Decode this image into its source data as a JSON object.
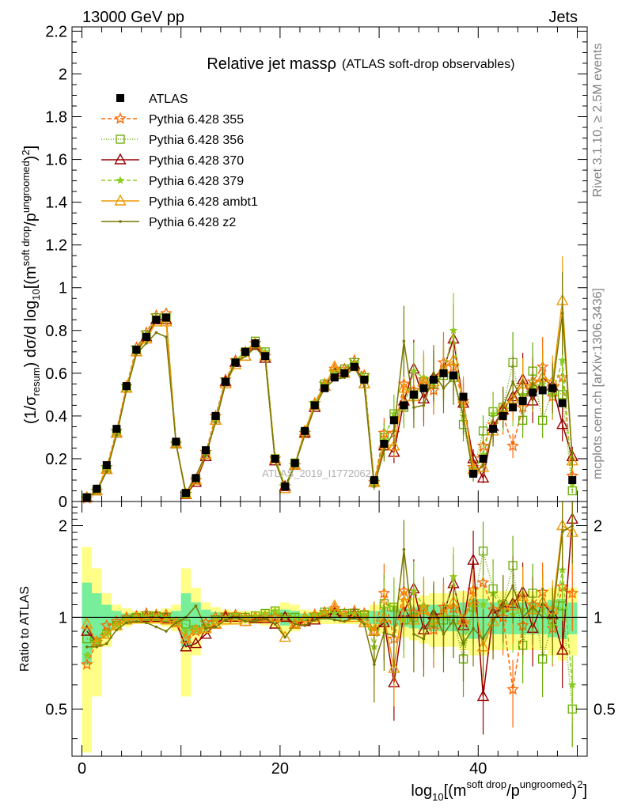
{
  "header": {
    "left": "13000 GeV pp",
    "right": "Jets"
  },
  "side_labels": {
    "rivet": "Rivet 3.1.10, ≥ 2.5M events",
    "mcplots": "mcplots.cern.ch [arXiv:1306.3436]"
  },
  "watermark": "ATLAS_2019_I1772062",
  "chart_data": [
    {
      "type": "line",
      "title": "Relative jet massρ",
      "subtitle": "(ATLAS soft-drop observables)",
      "ylabel": "(1/σresum) dσ/d log10[(m^soft drop/pT^ungroomed)^2]",
      "xlabel": "log10[(m^soft drop/pT^ungroomed)^2]",
      "xlim": [
        -1,
        51
      ],
      "ylim": [
        0,
        2.22
      ],
      "yticks": [
        0,
        0.2,
        0.4,
        0.6,
        0.8,
        1,
        1.2,
        1.4,
        1.6,
        1.8,
        2,
        2.2
      ],
      "ytick_labels": [
        "0",
        "0.2",
        "0.4",
        "0.6",
        "0.8",
        "1",
        "1.2",
        "1.4",
        "1.6",
        "1.8",
        "2",
        "2.2"
      ],
      "xticks": [
        0,
        20,
        40
      ],
      "xtick_labels": [
        "0",
        "20",
        "40"
      ],
      "legend_position": "top-left",
      "x": [
        0.5,
        1.5,
        2.5,
        3.5,
        4.5,
        5.5,
        6.5,
        7.5,
        8.5,
        9.5,
        10.5,
        11.5,
        12.5,
        13.5,
        14.5,
        15.5,
        16.5,
        17.5,
        18.5,
        19.5,
        20.5,
        21.5,
        22.5,
        23.5,
        24.5,
        25.5,
        26.5,
        27.5,
        28.5,
        29.5,
        30.5,
        31.5,
        32.5,
        33.5,
        34.5,
        35.5,
        36.5,
        37.5,
        38.5,
        39.5,
        40.5,
        41.5,
        42.5,
        43.5,
        44.5,
        45.5,
        46.5,
        47.5,
        48.5,
        49.5
      ],
      "series": [
        {
          "name": "ATLAS",
          "color": "#000000",
          "marker": "square",
          "dash": "none",
          "values": [
            0.02,
            0.06,
            0.17,
            0.34,
            0.54,
            0.71,
            0.77,
            0.85,
            0.86,
            0.28,
            0.04,
            0.11,
            0.24,
            0.4,
            0.56,
            0.65,
            0.7,
            0.74,
            0.68,
            0.2,
            0.07,
            0.18,
            0.33,
            0.45,
            0.53,
            0.58,
            0.6,
            0.63,
            0.57,
            0.1,
            0.27,
            0.38,
            0.45,
            0.5,
            0.53,
            0.57,
            0.6,
            0.59,
            0.49,
            0.13,
            0.2,
            0.34,
            0.4,
            0.44,
            0.47,
            0.51,
            0.52,
            0.53,
            0.46,
            0.1
          ]
        },
        {
          "name": "Pythia 6.428 355",
          "color": "#ff6600",
          "marker": "star",
          "dash": "5,3",
          "values": [
            0.014,
            0.05,
            0.16,
            0.33,
            0.54,
            0.72,
            0.79,
            0.87,
            0.88,
            0.27,
            0.035,
            0.1,
            0.23,
            0.4,
            0.57,
            0.66,
            0.7,
            0.74,
            0.68,
            0.2,
            0.07,
            0.17,
            0.32,
            0.46,
            0.55,
            0.62,
            0.62,
            0.66,
            0.59,
            0.09,
            0.32,
            0.32,
            0.55,
            0.52,
            0.57,
            0.52,
            0.65,
            0.63,
            0.47,
            0.16,
            0.26,
            0.36,
            0.4,
            0.26,
            0.44,
            0.56,
            0.63,
            0.49,
            0.58,
            0.12
          ]
        },
        {
          "name": "Pythia 6.428 356",
          "color": "#66aa00",
          "marker": "opensquare",
          "dash": "1,2",
          "values": [
            0.017,
            0.05,
            0.15,
            0.32,
            0.53,
            0.71,
            0.78,
            0.86,
            0.86,
            0.27,
            0.038,
            0.1,
            0.22,
            0.39,
            0.56,
            0.65,
            0.7,
            0.75,
            0.7,
            0.2,
            0.07,
            0.18,
            0.32,
            0.45,
            0.55,
            0.6,
            0.62,
            0.65,
            0.58,
            0.09,
            0.3,
            0.41,
            0.44,
            0.5,
            0.56,
            0.55,
            0.59,
            0.58,
            0.36,
            0.14,
            0.33,
            0.42,
            0.44,
            0.65,
            0.38,
            0.61,
            0.38,
            0.52,
            0.5,
            0.05
          ]
        },
        {
          "name": "Pythia 6.428 370",
          "color": "#990000",
          "marker": "triangle",
          "dash": "none",
          "values": [
            0.018,
            0.05,
            0.15,
            0.32,
            0.53,
            0.7,
            0.77,
            0.85,
            0.85,
            0.27,
            0.032,
            0.09,
            0.21,
            0.38,
            0.56,
            0.65,
            0.68,
            0.73,
            0.67,
            0.19,
            0.07,
            0.17,
            0.32,
            0.44,
            0.54,
            0.6,
            0.6,
            0.64,
            0.55,
            0.09,
            0.26,
            0.23,
            0.47,
            0.62,
            0.48,
            0.58,
            0.62,
            0.76,
            0.46,
            0.2,
            0.11,
            0.35,
            0.43,
            0.49,
            0.57,
            0.47,
            0.58,
            0.54,
            0.36,
            0.21
          ]
        },
        {
          "name": "Pythia 6.428 379",
          "color": "#88cc22",
          "marker": "smallstar",
          "dash": "5,3",
          "values": [
            0.015,
            0.05,
            0.15,
            0.32,
            0.53,
            0.71,
            0.78,
            0.86,
            0.86,
            0.27,
            0.036,
            0.1,
            0.22,
            0.39,
            0.56,
            0.66,
            0.7,
            0.75,
            0.7,
            0.21,
            0.07,
            0.18,
            0.33,
            0.46,
            0.55,
            0.6,
            0.61,
            0.65,
            0.58,
            0.08,
            0.29,
            0.41,
            0.44,
            0.61,
            0.58,
            0.55,
            0.6,
            0.8,
            0.4,
            0.14,
            0.22,
            0.41,
            0.42,
            0.45,
            0.5,
            0.54,
            0.55,
            0.5,
            0.66,
            0.08
          ]
        },
        {
          "name": "Pythia 6.428 ambt1",
          "color": "#ee9900",
          "marker": "triangle",
          "dash": "none",
          "values": [
            0.019,
            0.05,
            0.15,
            0.32,
            0.53,
            0.7,
            0.76,
            0.84,
            0.84,
            0.27,
            0.034,
            0.1,
            0.22,
            0.38,
            0.55,
            0.64,
            0.68,
            0.74,
            0.68,
            0.2,
            0.06,
            0.17,
            0.33,
            0.45,
            0.54,
            0.63,
            0.6,
            0.63,
            0.55,
            0.09,
            0.27,
            0.26,
            0.53,
            0.49,
            0.56,
            0.56,
            0.62,
            0.66,
            0.48,
            0.15,
            0.16,
            0.33,
            0.44,
            0.48,
            0.55,
            0.54,
            0.58,
            0.56,
            0.94,
            0.19
          ]
        },
        {
          "name": "Pythia 6.428 z2",
          "color": "#777700",
          "marker": "dot",
          "dash": "none",
          "values": [
            0.016,
            0.048,
            0.14,
            0.31,
            0.52,
            0.69,
            0.74,
            0.79,
            0.77,
            0.27,
            0.04,
            0.12,
            0.22,
            0.37,
            0.55,
            0.65,
            0.68,
            0.72,
            0.67,
            0.19,
            0.06,
            0.17,
            0.31,
            0.44,
            0.53,
            0.57,
            0.58,
            0.63,
            0.54,
            0.07,
            0.24,
            0.33,
            0.75,
            0.44,
            0.45,
            0.6,
            0.53,
            0.58,
            0.4,
            0.12,
            0.17,
            0.33,
            0.44,
            0.56,
            0.47,
            0.55,
            0.52,
            0.53,
            0.88,
            0.2
          ]
        }
      ]
    },
    {
      "type": "line",
      "ylabel": "Ratio to ATLAS",
      "xlabel": "log10[(m^soft drop/pT^ungroomed)^2]",
      "xlim": [
        -1,
        51
      ],
      "ylim": [
        0.35,
        2.4
      ],
      "yscale": "log",
      "yticks": [
        0.5,
        1,
        2
      ],
      "ytick_labels": [
        "0.5",
        "1",
        "2"
      ],
      "xticks": [
        0,
        20,
        40
      ],
      "xtick_labels": [
        "0",
        "20",
        "40"
      ],
      "reference_line": 1,
      "band_inner_halfwidth": [
        0.3,
        0.2,
        0.1,
        0.05,
        0.03,
        0.02,
        0.02,
        0.02,
        0.03,
        0.05,
        0.2,
        0.12,
        0.06,
        0.04,
        0.03,
        0.02,
        0.02,
        0.02,
        0.03,
        0.04,
        0.06,
        0.05,
        0.03,
        0.02,
        0.02,
        0.02,
        0.02,
        0.02,
        0.03,
        0.05,
        0.06,
        0.06,
        0.07,
        0.08,
        0.09,
        0.1,
        0.1,
        0.1,
        0.12,
        0.15,
        0.15,
        0.12,
        0.12,
        0.12,
        0.12,
        0.12,
        0.12,
        0.14,
        0.15,
        0.12
      ],
      "band_outer_halfwidth": [
        0.7,
        0.45,
        0.2,
        0.1,
        0.07,
        0.05,
        0.05,
        0.05,
        0.07,
        0.1,
        0.45,
        0.25,
        0.12,
        0.08,
        0.06,
        0.05,
        0.05,
        0.05,
        0.06,
        0.08,
        0.12,
        0.1,
        0.06,
        0.05,
        0.05,
        0.05,
        0.05,
        0.05,
        0.06,
        0.1,
        0.12,
        0.12,
        0.14,
        0.16,
        0.18,
        0.2,
        0.2,
        0.2,
        0.22,
        0.25,
        0.25,
        0.22,
        0.22,
        0.22,
        0.22,
        0.22,
        0.22,
        0.25,
        0.28,
        0.25
      ],
      "series": [
        {
          "name": "Pythia 6.428 355",
          "values": [
            0.7,
            0.83,
            0.94,
            0.97,
            1.0,
            1.01,
            1.03,
            1.02,
            1.02,
            0.96,
            0.85,
            0.9,
            0.96,
            1.0,
            1.02,
            1.02,
            1.0,
            1.0,
            1.0,
            1.0,
            1.0,
            0.95,
            0.97,
            1.02,
            1.04,
            1.07,
            1.03,
            1.05,
            1.03,
            0.9,
            1.2,
            0.85,
            1.22,
            1.04,
            1.08,
            0.91,
            1.08,
            1.07,
            0.96,
            1.23,
            1.3,
            1.06,
            1.0,
            0.58,
            0.94,
            1.1,
            1.21,
            0.92,
            1.26,
            1.2
          ]
        },
        {
          "name": "Pythia 6.428 356",
          "values": [
            0.85,
            0.83,
            0.88,
            0.94,
            0.98,
            1.0,
            1.01,
            1.01,
            1.0,
            0.96,
            0.95,
            0.91,
            0.92,
            0.98,
            1.0,
            1.0,
            1.0,
            1.01,
            1.03,
            1.05,
            1.0,
            1.0,
            0.97,
            1.0,
            1.04,
            1.03,
            1.03,
            1.03,
            1.02,
            0.9,
            1.11,
            1.08,
            0.98,
            1.0,
            1.06,
            0.96,
            0.98,
            0.98,
            0.73,
            1.08,
            1.65,
            1.24,
            1.1,
            1.48,
            0.81,
            1.2,
            0.73,
            0.98,
            1.09,
            0.5
          ]
        },
        {
          "name": "Pythia 6.428 370",
          "values": [
            0.9,
            0.83,
            0.88,
            0.94,
            0.98,
            0.99,
            1.0,
            1.0,
            0.99,
            0.96,
            0.8,
            0.82,
            0.88,
            0.95,
            1.0,
            1.0,
            0.97,
            0.99,
            0.99,
            0.95,
            1.0,
            0.95,
            0.97,
            0.98,
            1.02,
            1.03,
            1.0,
            1.02,
            0.96,
            0.9,
            0.96,
            0.61,
            1.04,
            1.24,
            0.91,
            1.02,
            1.03,
            1.29,
            0.94,
            1.54,
            0.55,
            1.03,
            1.08,
            1.11,
            1.21,
            0.92,
            1.12,
            1.02,
            0.78,
            2.1
          ]
        },
        {
          "name": "Pythia 6.428 379",
          "values": [
            0.75,
            0.83,
            0.88,
            0.94,
            0.98,
            1.0,
            1.01,
            1.01,
            1.0,
            0.96,
            0.9,
            0.91,
            0.92,
            0.98,
            1.0,
            1.02,
            1.0,
            1.01,
            1.03,
            1.05,
            1.0,
            1.0,
            1.0,
            1.02,
            1.04,
            1.03,
            1.02,
            1.03,
            1.02,
            0.8,
            1.07,
            1.08,
            0.98,
            1.22,
            1.09,
            0.96,
            1.0,
            1.36,
            0.82,
            1.08,
            1.1,
            1.2,
            1.05,
            1.02,
            1.06,
            1.06,
            1.06,
            0.94,
            1.43,
            0.6
          ]
        },
        {
          "name": "Pythia 6.428 ambt1",
          "values": [
            0.95,
            0.83,
            0.88,
            0.94,
            0.98,
            0.99,
            0.99,
            0.99,
            0.98,
            0.96,
            0.85,
            0.91,
            0.92,
            0.95,
            0.98,
            0.98,
            0.97,
            1.0,
            1.0,
            1.0,
            0.86,
            0.95,
            1.0,
            1.0,
            1.02,
            1.09,
            1.0,
            1.0,
            0.96,
            0.9,
            1.0,
            0.68,
            1.18,
            0.98,
            1.06,
            0.98,
            1.03,
            1.12,
            0.98,
            1.15,
            0.8,
            0.97,
            1.1,
            1.09,
            1.17,
            1.06,
            1.12,
            1.06,
            2.0,
            1.9
          ]
        },
        {
          "name": "Pythia 6.428 z2",
          "values": [
            0.8,
            0.8,
            0.82,
            0.91,
            0.96,
            0.97,
            0.96,
            0.93,
            0.9,
            0.96,
            1.0,
            1.09,
            0.92,
            0.93,
            0.98,
            1.0,
            0.97,
            0.97,
            0.99,
            0.95,
            0.86,
            0.95,
            0.94,
            0.98,
            1.0,
            0.98,
            0.97,
            1.0,
            0.95,
            0.7,
            0.89,
            0.87,
            1.67,
            0.88,
            0.85,
            1.05,
            0.88,
            0.98,
            0.82,
            0.92,
            0.85,
            0.97,
            1.1,
            1.27,
            1.0,
            1.08,
            1.0,
            1.0,
            1.91,
            2.0
          ]
        }
      ]
    }
  ]
}
